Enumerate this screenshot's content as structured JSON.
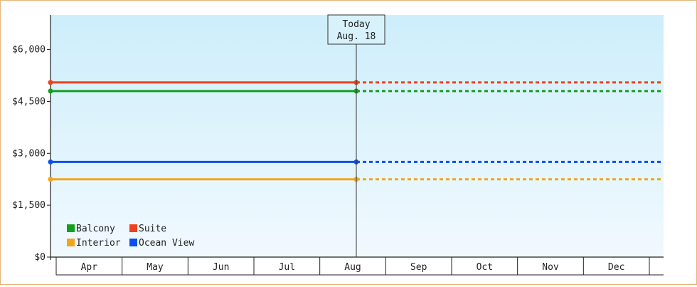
{
  "chart_data": {
    "type": "line",
    "x_categories": [
      "Apr",
      "May",
      "Jun",
      "Jul",
      "Aug",
      "Sep",
      "Oct",
      "Nov",
      "Dec"
    ],
    "y_ticks": [
      "$0",
      "$1,500",
      "$3,000",
      "$4,500",
      "$6,000"
    ],
    "y_tick_values": [
      0,
      1500,
      3000,
      4500,
      6000
    ],
    "ylim": [
      0,
      7000
    ],
    "today_marker": {
      "line1": "Today",
      "line2": "Aug. 18",
      "month_index": 4.1
    },
    "series": [
      {
        "name": "Balcony",
        "color": "#13a01c",
        "values": [
          4800,
          4800
        ]
      },
      {
        "name": "Suite",
        "color": "#f0401c",
        "values": [
          5050,
          5050
        ]
      },
      {
        "name": "Interior",
        "color": "#f2a51c",
        "values": [
          2250,
          2250
        ]
      },
      {
        "name": "Ocean View",
        "color": "#0c4ff0",
        "values": [
          2750,
          2750
        ]
      }
    ],
    "series_x": [
      0,
      4.1
    ],
    "projection": "dashed to Dec",
    "legend": {
      "placement": "bottom-left",
      "order": [
        "Balcony",
        "Suite",
        "Interior",
        "Ocean View"
      ]
    },
    "grid": false,
    "title": "",
    "xlabel": "",
    "ylabel": ""
  }
}
